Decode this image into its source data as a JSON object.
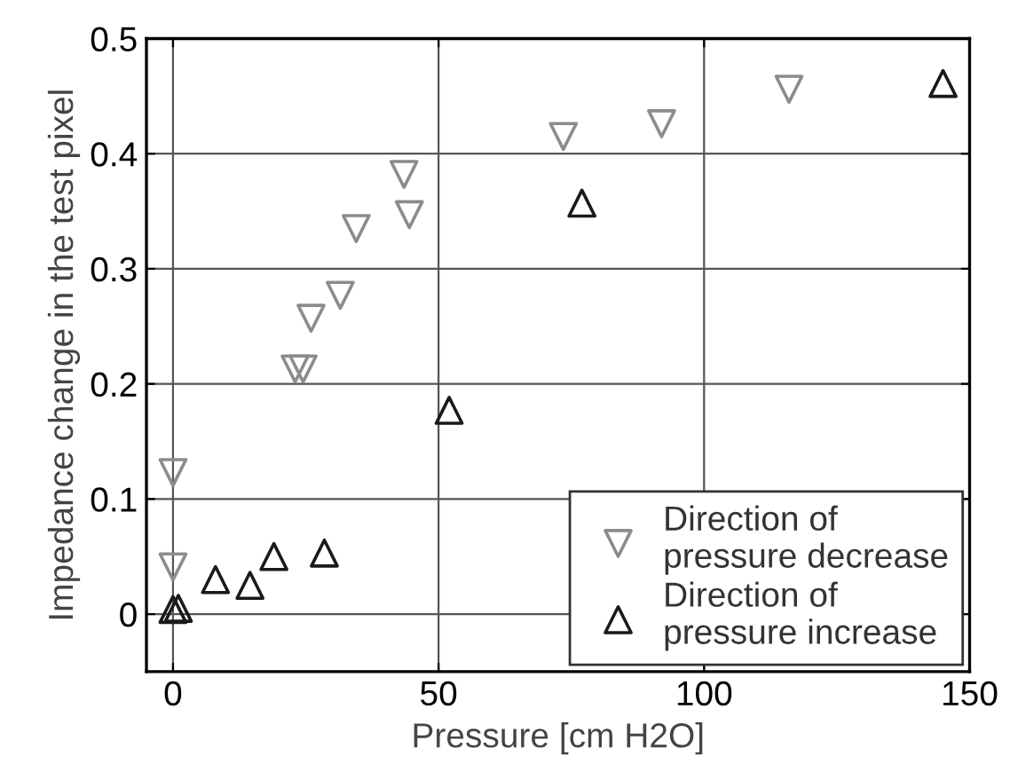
{
  "chart_data": {
    "type": "scatter",
    "xlabel": "Pressure [cm H2O]",
    "ylabel": "Impedance change in the test pixel",
    "xlim": [
      -5,
      150
    ],
    "xticks": [
      0,
      50,
      100,
      150
    ],
    "ylim": [
      -0.05,
      0.5
    ],
    "yticks": [
      0,
      0.1,
      0.2,
      0.3,
      0.4,
      0.5
    ],
    "grid": true,
    "legend": "bottom right",
    "series": [
      {
        "name": "Direction of\npressure decrease",
        "color": "#8c8c8c",
        "marker": "triangle_down",
        "x": [
          0,
          0,
          23,
          24.5,
          26,
          31.5,
          34.5,
          43.5,
          44.5,
          73.5,
          92,
          116
        ],
        "values": [
          0.123,
          0.041,
          0.213,
          0.213,
          0.257,
          0.277,
          0.335,
          0.382,
          0.347,
          0.415,
          0.426,
          0.456
        ]
      },
      {
        "name": "Direction of\npressure increase",
        "color": "#1a1a1a",
        "marker": "triangle",
        "x": [
          0,
          1,
          8,
          14.5,
          19,
          28.5,
          52,
          77,
          145
        ],
        "values": [
          0.004,
          0.005,
          0.03,
          0.025,
          0.05,
          0.053,
          0.177,
          0.357,
          0.461
        ]
      }
    ]
  }
}
